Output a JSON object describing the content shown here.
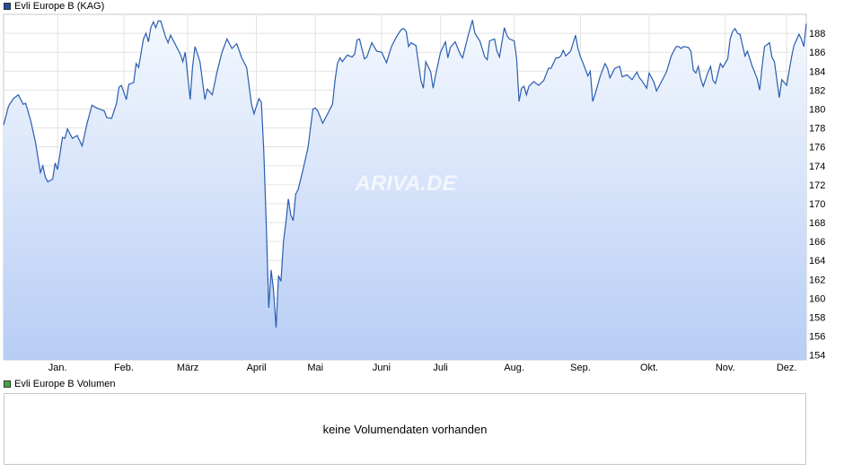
{
  "legend": {
    "price_label": "Evli Europe B (KAG)",
    "price_color": "#1f4f9f",
    "volume_label": "Evli Europe B Volumen",
    "volume_color": "#3fa83f"
  },
  "volume": {
    "message": "keine Volumendaten vorhanden"
  },
  "watermark": "ARIVA.DE",
  "chart_data": {
    "type": "area",
    "title": "",
    "xlabel": "",
    "ylabel": "",
    "ylim": [
      153.5,
      190
    ],
    "yticks": [
      154,
      156,
      158,
      160,
      162,
      164,
      166,
      168,
      170,
      172,
      174,
      176,
      178,
      180,
      182,
      184,
      186,
      188
    ],
    "months": [
      {
        "label": "Jan.",
        "day": 22
      },
      {
        "label": "Feb.",
        "day": 49
      },
      {
        "label": "März",
        "day": 75
      },
      {
        "label": "April",
        "day": 103
      },
      {
        "label": "Mai",
        "day": 127
      },
      {
        "label": "Juni",
        "day": 154
      },
      {
        "label": "Juli",
        "day": 178
      },
      {
        "label": "Aug.",
        "day": 208
      },
      {
        "label": "Sep.",
        "day": 235
      },
      {
        "label": "Okt.",
        "day": 263
      },
      {
        "label": "Nov.",
        "day": 294
      },
      {
        "label": "Dez.",
        "day": 319
      }
    ],
    "xlim": [
      0,
      327
    ],
    "grid": true,
    "colors": {
      "line": "#2a5db0",
      "fill_top": "#f4f8fe",
      "fill_bottom": "#b7cdf5",
      "grid": "#e2e2e2"
    },
    "series": [
      {
        "points": [
          [
            0,
            178.3
          ],
          [
            2,
            180.3
          ],
          [
            4,
            181.1
          ],
          [
            6,
            181.5
          ],
          [
            8,
            180.5
          ],
          [
            9,
            180.6
          ],
          [
            11,
            178.8
          ],
          [
            13,
            176.5
          ],
          [
            15,
            173.3
          ],
          [
            16,
            174.0
          ],
          [
            17,
            172.8
          ],
          [
            18,
            172.3
          ],
          [
            20,
            172.6
          ],
          [
            21,
            174.3
          ],
          [
            22,
            173.6
          ],
          [
            24,
            177.0
          ],
          [
            25,
            176.9
          ],
          [
            26,
            177.9
          ],
          [
            28,
            176.9
          ],
          [
            30,
            177.2
          ],
          [
            32,
            176.1
          ],
          [
            34,
            178.5
          ],
          [
            36,
            180.4
          ],
          [
            38,
            180.1
          ],
          [
            41,
            179.8
          ],
          [
            42,
            179.1
          ],
          [
            44,
            179.0
          ],
          [
            46,
            180.6
          ],
          [
            47,
            182.3
          ],
          [
            48,
            182.5
          ],
          [
            50,
            181.0
          ],
          [
            51,
            182.6
          ],
          [
            53,
            182.8
          ],
          [
            54,
            184.8
          ],
          [
            55,
            184.4
          ],
          [
            57,
            187.4
          ],
          [
            58,
            188.0
          ],
          [
            59,
            187.1
          ],
          [
            60,
            188.6
          ],
          [
            61,
            189.2
          ],
          [
            62,
            188.6
          ],
          [
            63,
            189.3
          ],
          [
            64,
            189.3
          ],
          [
            66,
            187.6
          ],
          [
            67,
            187.0
          ],
          [
            68,
            187.8
          ],
          [
            70,
            186.8
          ],
          [
            72,
            185.8
          ],
          [
            73,
            185.0
          ],
          [
            74,
            186.0
          ],
          [
            76,
            181.0
          ],
          [
            77,
            184.5
          ],
          [
            78,
            186.6
          ],
          [
            80,
            185.0
          ],
          [
            82,
            181.0
          ],
          [
            83,
            182.1
          ],
          [
            85,
            181.5
          ],
          [
            87,
            184.0
          ],
          [
            89,
            186.0
          ],
          [
            91,
            187.4
          ],
          [
            93,
            186.4
          ],
          [
            95,
            186.9
          ],
          [
            97,
            185.4
          ],
          [
            99,
            184.4
          ],
          [
            101,
            180.5
          ],
          [
            102,
            179.5
          ],
          [
            104,
            181.1
          ],
          [
            105,
            180.7
          ],
          [
            106,
            175.5
          ],
          [
            107,
            168.0
          ],
          [
            108,
            159.0
          ],
          [
            109,
            163.0
          ],
          [
            110,
            160.8
          ],
          [
            111,
            156.9
          ],
          [
            112,
            162.4
          ],
          [
            113,
            161.8
          ],
          [
            114,
            166.0
          ],
          [
            115,
            168.0
          ],
          [
            116,
            170.5
          ],
          [
            117,
            168.8
          ],
          [
            118,
            168.2
          ],
          [
            119,
            171.0
          ],
          [
            120,
            171.5
          ],
          [
            122,
            173.6
          ],
          [
            124,
            175.9
          ],
          [
            126,
            180.0
          ],
          [
            127,
            180.1
          ],
          [
            128,
            179.8
          ],
          [
            130,
            178.5
          ],
          [
            132,
            179.5
          ],
          [
            134,
            180.5
          ],
          [
            135,
            183.0
          ],
          [
            136,
            184.8
          ],
          [
            137,
            185.4
          ],
          [
            138,
            185.0
          ],
          [
            140,
            185.7
          ],
          [
            142,
            185.5
          ],
          [
            143,
            185.8
          ],
          [
            144,
            187.3
          ],
          [
            145,
            187.4
          ],
          [
            147,
            185.3
          ],
          [
            148,
            185.5
          ],
          [
            150,
            187.0
          ],
          [
            152,
            186.1
          ],
          [
            154,
            186.0
          ],
          [
            156,
            184.9
          ],
          [
            158,
            186.6
          ],
          [
            160,
            187.6
          ],
          [
            162,
            188.4
          ],
          [
            163,
            188.5
          ],
          [
            164,
            188.2
          ],
          [
            165,
            186.6
          ],
          [
            166,
            187.0
          ],
          [
            168,
            186.7
          ],
          [
            170,
            183.0
          ],
          [
            171,
            182.2
          ],
          [
            172,
            185.0
          ],
          [
            174,
            183.9
          ],
          [
            175,
            182.2
          ],
          [
            176,
            183.6
          ],
          [
            178,
            186.0
          ],
          [
            180,
            187.1
          ],
          [
            181,
            185.4
          ],
          [
            182,
            186.5
          ],
          [
            184,
            187.1
          ],
          [
            186,
            185.8
          ],
          [
            187,
            185.4
          ],
          [
            189,
            187.5
          ],
          [
            191,
            189.4
          ],
          [
            192,
            188.0
          ],
          [
            194,
            187.2
          ],
          [
            196,
            185.5
          ],
          [
            197,
            185.2
          ],
          [
            198,
            187.2
          ],
          [
            200,
            187.4
          ],
          [
            201,
            186.1
          ],
          [
            202,
            185.5
          ],
          [
            204,
            188.6
          ],
          [
            205,
            187.8
          ],
          [
            206,
            187.4
          ],
          [
            208,
            187.2
          ],
          [
            209,
            185.3
          ],
          [
            210,
            180.8
          ],
          [
            211,
            182.2
          ],
          [
            212,
            182.4
          ],
          [
            213,
            181.5
          ],
          [
            214,
            182.4
          ],
          [
            216,
            182.9
          ],
          [
            218,
            182.5
          ],
          [
            220,
            183.0
          ],
          [
            222,
            184.3
          ],
          [
            223,
            184.3
          ],
          [
            225,
            185.4
          ],
          [
            226,
            185.4
          ],
          [
            227,
            185.6
          ],
          [
            228,
            186.2
          ],
          [
            229,
            185.6
          ],
          [
            231,
            186.1
          ],
          [
            233,
            187.8
          ],
          [
            234,
            186.4
          ],
          [
            235,
            185.5
          ],
          [
            236,
            184.9
          ],
          [
            238,
            183.5
          ],
          [
            239,
            184.0
          ],
          [
            240,
            180.8
          ],
          [
            241,
            181.6
          ],
          [
            243,
            183.4
          ],
          [
            245,
            184.8
          ],
          [
            246,
            184.3
          ],
          [
            247,
            183.3
          ],
          [
            249,
            184.3
          ],
          [
            251,
            184.5
          ],
          [
            252,
            183.4
          ],
          [
            254,
            183.6
          ],
          [
            256,
            183.1
          ],
          [
            258,
            183.9
          ],
          [
            259,
            183.3
          ],
          [
            260,
            183.0
          ],
          [
            262,
            182.2
          ],
          [
            263,
            183.8
          ],
          [
            265,
            182.8
          ],
          [
            266,
            181.9
          ],
          [
            268,
            182.9
          ],
          [
            270,
            183.9
          ],
          [
            272,
            185.6
          ],
          [
            274,
            186.6
          ],
          [
            275,
            186.6
          ],
          [
            276,
            186.4
          ],
          [
            277,
            186.6
          ],
          [
            279,
            186.5
          ],
          [
            280,
            186.1
          ],
          [
            281,
            184.1
          ],
          [
            282,
            183.8
          ],
          [
            283,
            184.5
          ],
          [
            284,
            183.2
          ],
          [
            285,
            182.4
          ],
          [
            287,
            183.9
          ],
          [
            288,
            184.5
          ],
          [
            289,
            183.0
          ],
          [
            290,
            182.7
          ],
          [
            292,
            184.8
          ],
          [
            293,
            184.4
          ],
          [
            295,
            185.3
          ],
          [
            296,
            187.4
          ],
          [
            297,
            188.2
          ],
          [
            298,
            188.5
          ],
          [
            299,
            188.0
          ],
          [
            300,
            187.9
          ],
          [
            302,
            185.6
          ],
          [
            303,
            186.1
          ],
          [
            305,
            184.5
          ],
          [
            307,
            183.2
          ],
          [
            308,
            182.0
          ],
          [
            309,
            184.5
          ],
          [
            310,
            186.6
          ],
          [
            312,
            187.0
          ],
          [
            313,
            185.5
          ],
          [
            314,
            185.0
          ],
          [
            316,
            181.2
          ],
          [
            317,
            183.1
          ],
          [
            318,
            182.8
          ],
          [
            319,
            182.5
          ],
          [
            321,
            185.5
          ],
          [
            322,
            186.7
          ],
          [
            323,
            187.3
          ],
          [
            324,
            187.9
          ],
          [
            325,
            187.4
          ],
          [
            326,
            186.6
          ],
          [
            327,
            189.0
          ]
        ]
      }
    ]
  }
}
